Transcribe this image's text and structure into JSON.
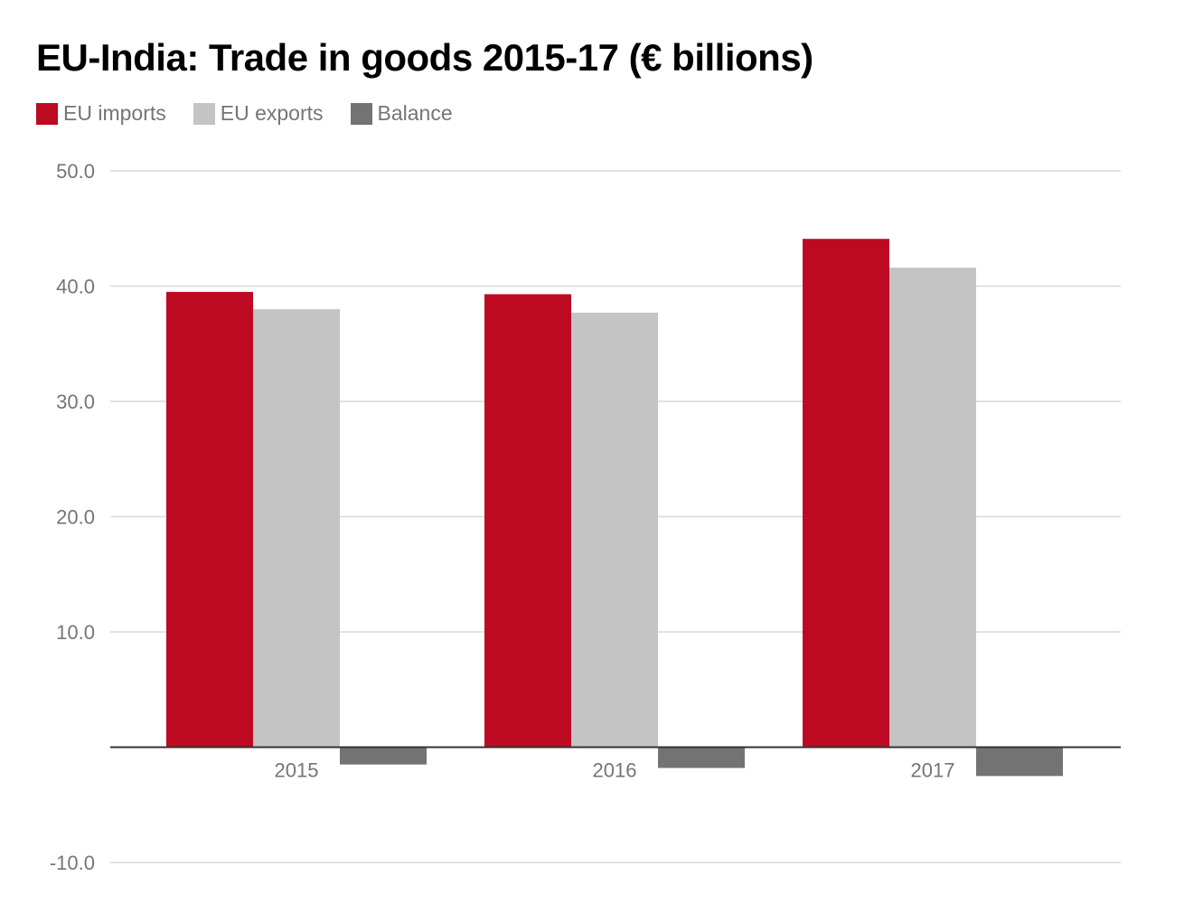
{
  "chart_data": {
    "type": "bar",
    "title": "EU-India: Trade in goods 2015-17 (€ billions)",
    "xlabel": "",
    "ylabel": "",
    "categories": [
      "2015",
      "2016",
      "2017"
    ],
    "series": [
      {
        "name": "EU imports",
        "values": [
          39.5,
          39.3,
          44.1
        ],
        "color": "#bd0a22"
      },
      {
        "name": "EU exports",
        "values": [
          38.0,
          37.7,
          41.6
        ],
        "color": "#c4c4c4"
      },
      {
        "name": "Balance",
        "values": [
          -1.5,
          -1.8,
          -2.5
        ],
        "color": "#737373"
      }
    ],
    "ylim": [
      -10,
      50
    ],
    "yticks": [
      "-10.0",
      "10.0",
      "20.0",
      "30.0",
      "40.0",
      "50.0"
    ],
    "grid": true,
    "legend_position": "top-left"
  }
}
